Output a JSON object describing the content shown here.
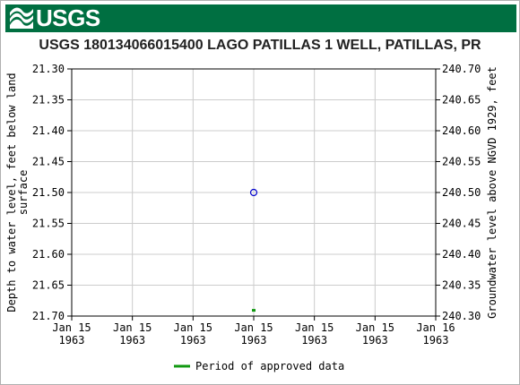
{
  "header": {
    "logo_text": "USGS"
  },
  "chart_data": {
    "type": "scatter",
    "title": "USGS 180134066015400 LAGO PATILLAS 1 WELL, PATILLAS, PR",
    "ylabel_left": [
      "Depth to water level, feet below land",
      "surface"
    ],
    "ylabel_right": "Groundwater level above NGVD 1929, feet",
    "y_left_range": [
      21.3,
      21.7
    ],
    "y_left_inverted": true,
    "y_right_range": [
      240.3,
      240.7
    ],
    "y_left_ticks": [
      "21.30",
      "21.35",
      "21.40",
      "21.45",
      "21.50",
      "21.55",
      "21.60",
      "21.65",
      "21.70"
    ],
    "y_right_ticks": [
      "240.70",
      "240.65",
      "240.60",
      "240.55",
      "240.50",
      "240.45",
      "240.40",
      "240.35",
      "240.30"
    ],
    "x_ticks": [
      [
        "Jan 15",
        "1963"
      ],
      [
        "Jan 15",
        "1963"
      ],
      [
        "Jan 15",
        "1963"
      ],
      [
        "Jan 15",
        "1963"
      ],
      [
        "Jan 15",
        "1963"
      ],
      [
        "Jan 15",
        "1963"
      ],
      [
        "Jan 16",
        "1963"
      ]
    ],
    "x_range": [
      0,
      6
    ],
    "grid": true,
    "points": [
      {
        "series": "measurement",
        "x": 3.0,
        "y": 21.5,
        "marker": "circle",
        "color": "#0000cc"
      }
    ],
    "approved_marks": [
      {
        "x": 3.0,
        "y": 21.69,
        "color": "#119911"
      }
    ],
    "legend": {
      "position": "bottom",
      "label": "Period of approved data",
      "color": "#119911"
    }
  }
}
